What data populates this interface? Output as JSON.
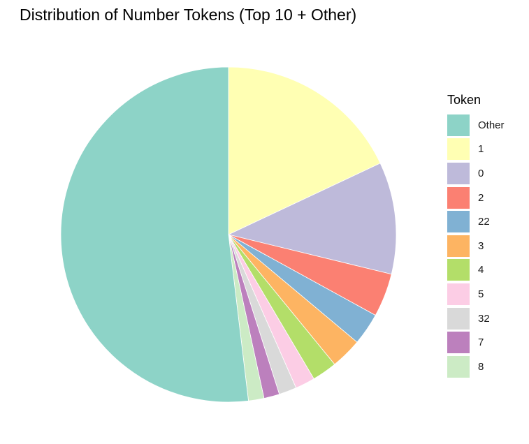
{
  "chart_data": {
    "type": "pie",
    "title": "Distribution of Number Tokens (Top 10 + Other)",
    "legend_title": "Token",
    "legend_position": "right",
    "slices": [
      {
        "label": "1",
        "value": 18.0,
        "color": "#FFFFB3"
      },
      {
        "label": "0",
        "value": 10.8,
        "color": "#BEBADA"
      },
      {
        "label": "2",
        "value": 4.2,
        "color": "#FB8072"
      },
      {
        "label": "22",
        "value": 3.1,
        "color": "#80B1D3"
      },
      {
        "label": "3",
        "value": 3.0,
        "color": "#FDB462"
      },
      {
        "label": "4",
        "value": 2.4,
        "color": "#B3DE69"
      },
      {
        "label": "5",
        "value": 1.9,
        "color": "#FCCDE5"
      },
      {
        "label": "32",
        "value": 1.7,
        "color": "#D9D9D9"
      },
      {
        "label": "7",
        "value": 1.5,
        "color": "#BC80BD"
      },
      {
        "label": "8",
        "value": 1.5,
        "color": "#CCEBC5"
      },
      {
        "label": "Other",
        "value": 51.9,
        "color": "#8DD3C7"
      }
    ],
    "legend_order": [
      "Other",
      "1",
      "0",
      "2",
      "22",
      "3",
      "4",
      "5",
      "32",
      "7",
      "8"
    ]
  }
}
